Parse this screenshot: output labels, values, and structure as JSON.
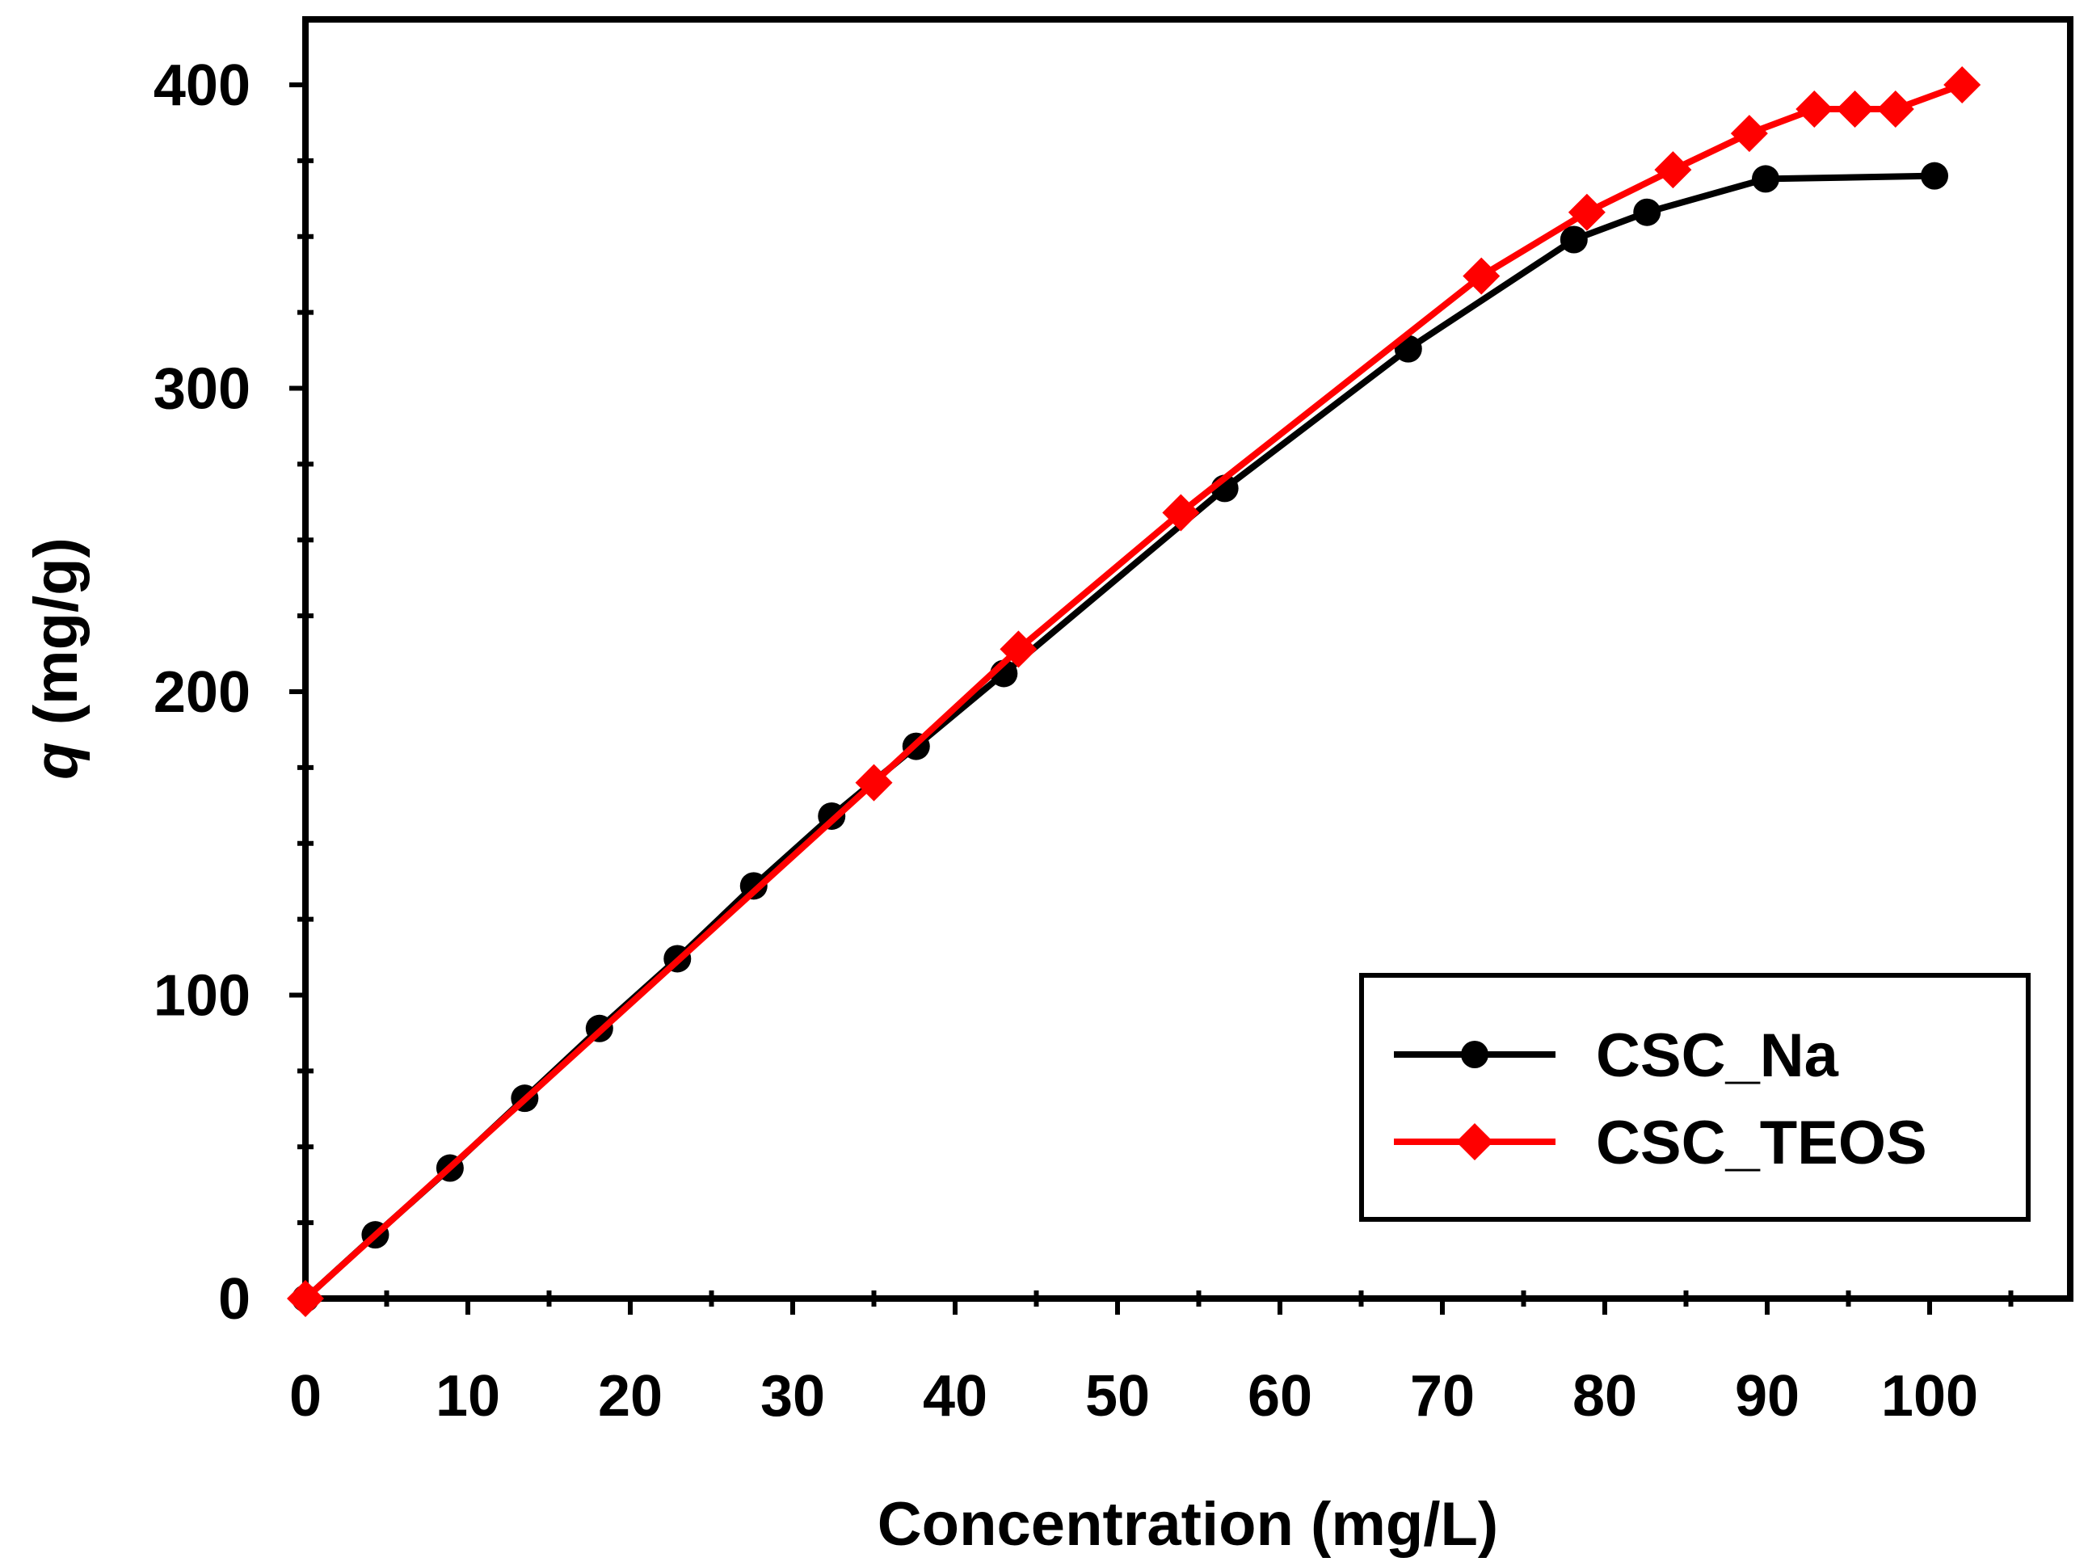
{
  "chart_data": {
    "type": "line",
    "title": "",
    "xlabel": "Concentration (mg/L)",
    "ylabel_symbol": "q",
    "ylabel_unit": " (mg/g)",
    "xlim": [
      0,
      108
    ],
    "ylim": [
      0,
      420
    ],
    "x_ticks": [
      0,
      10,
      20,
      30,
      40,
      50,
      60,
      70,
      80,
      90,
      100
    ],
    "x_tick_labels": [
      "0",
      "10",
      "20",
      "30",
      "40",
      "50",
      "60",
      "70",
      "80",
      "90",
      "100"
    ],
    "y_ticks": [
      0,
      100,
      200,
      300,
      400
    ],
    "y_tick_labels": [
      "0",
      "100",
      "200",
      "300",
      "400"
    ],
    "legend_position": "bottom-right",
    "grid": false,
    "series": [
      {
        "name": "CSC_Na",
        "color": "#000000",
        "marker": "circle",
        "x": [
          0,
          4.3,
          8.9,
          13.5,
          18.1,
          22.9,
          27.6,
          32.4,
          37.6,
          43.0,
          56.6,
          67.9,
          78.1,
          82.6,
          89.9,
          100.3
        ],
        "y": [
          0,
          21,
          43,
          66,
          89,
          112,
          136,
          159,
          182,
          206,
          267,
          313,
          349,
          358,
          369,
          370
        ]
      },
      {
        "name": "CSC_TEOS",
        "color": "#ff0000",
        "marker": "diamond",
        "x": [
          0,
          35.0,
          43.9,
          53.9,
          72.4,
          78.9,
          84.2,
          88.9,
          92.9,
          95.4,
          97.9,
          102.0
        ],
        "y": [
          0,
          170,
          214,
          259,
          337,
          358,
          372,
          384,
          392,
          392,
          392,
          400
        ]
      }
    ]
  }
}
